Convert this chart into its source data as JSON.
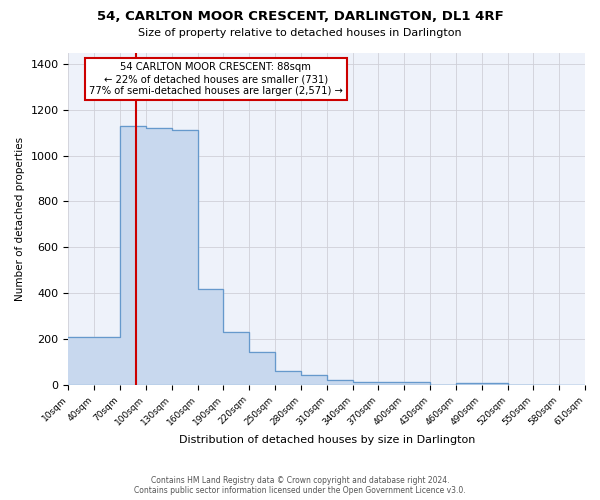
{
  "title1": "54, CARLTON MOOR CRESCENT, DARLINGTON, DL1 4RF",
  "title2": "Size of property relative to detached houses in Darlington",
  "xlabel": "Distribution of detached houses by size in Darlington",
  "ylabel": "Number of detached properties",
  "annotation_title": "54 CARLTON MOOR CRESCENT: 88sqm",
  "annotation_line1": "← 22% of detached houses are smaller (731)",
  "annotation_line2": "77% of semi-detached houses are larger (2,571) →",
  "footer1": "Contains HM Land Registry data © Crown copyright and database right 2024.",
  "footer2": "Contains public sector information licensed under the Open Government Licence v3.0.",
  "property_size_sqm": 88,
  "bin_edges": [
    10,
    40,
    70,
    100,
    130,
    160,
    190,
    220,
    250,
    280,
    310,
    340,
    370,
    400,
    430,
    460,
    490,
    520,
    550,
    580,
    610
  ],
  "bar_heights": [
    210,
    210,
    1130,
    1120,
    1110,
    420,
    230,
    145,
    60,
    42,
    22,
    12,
    12,
    12,
    0,
    10,
    10,
    0,
    0,
    0
  ],
  "bar_color": "#c8d8ee",
  "bar_edge_color": "#6699cc",
  "vline_x": 88,
  "vline_color": "#cc0000",
  "annotation_box_color": "#cc0000",
  "background_color": "#eef2fa",
  "grid_color": "#d0d0d8",
  "ylim": [
    0,
    1450
  ],
  "xlim": [
    10,
    610
  ]
}
